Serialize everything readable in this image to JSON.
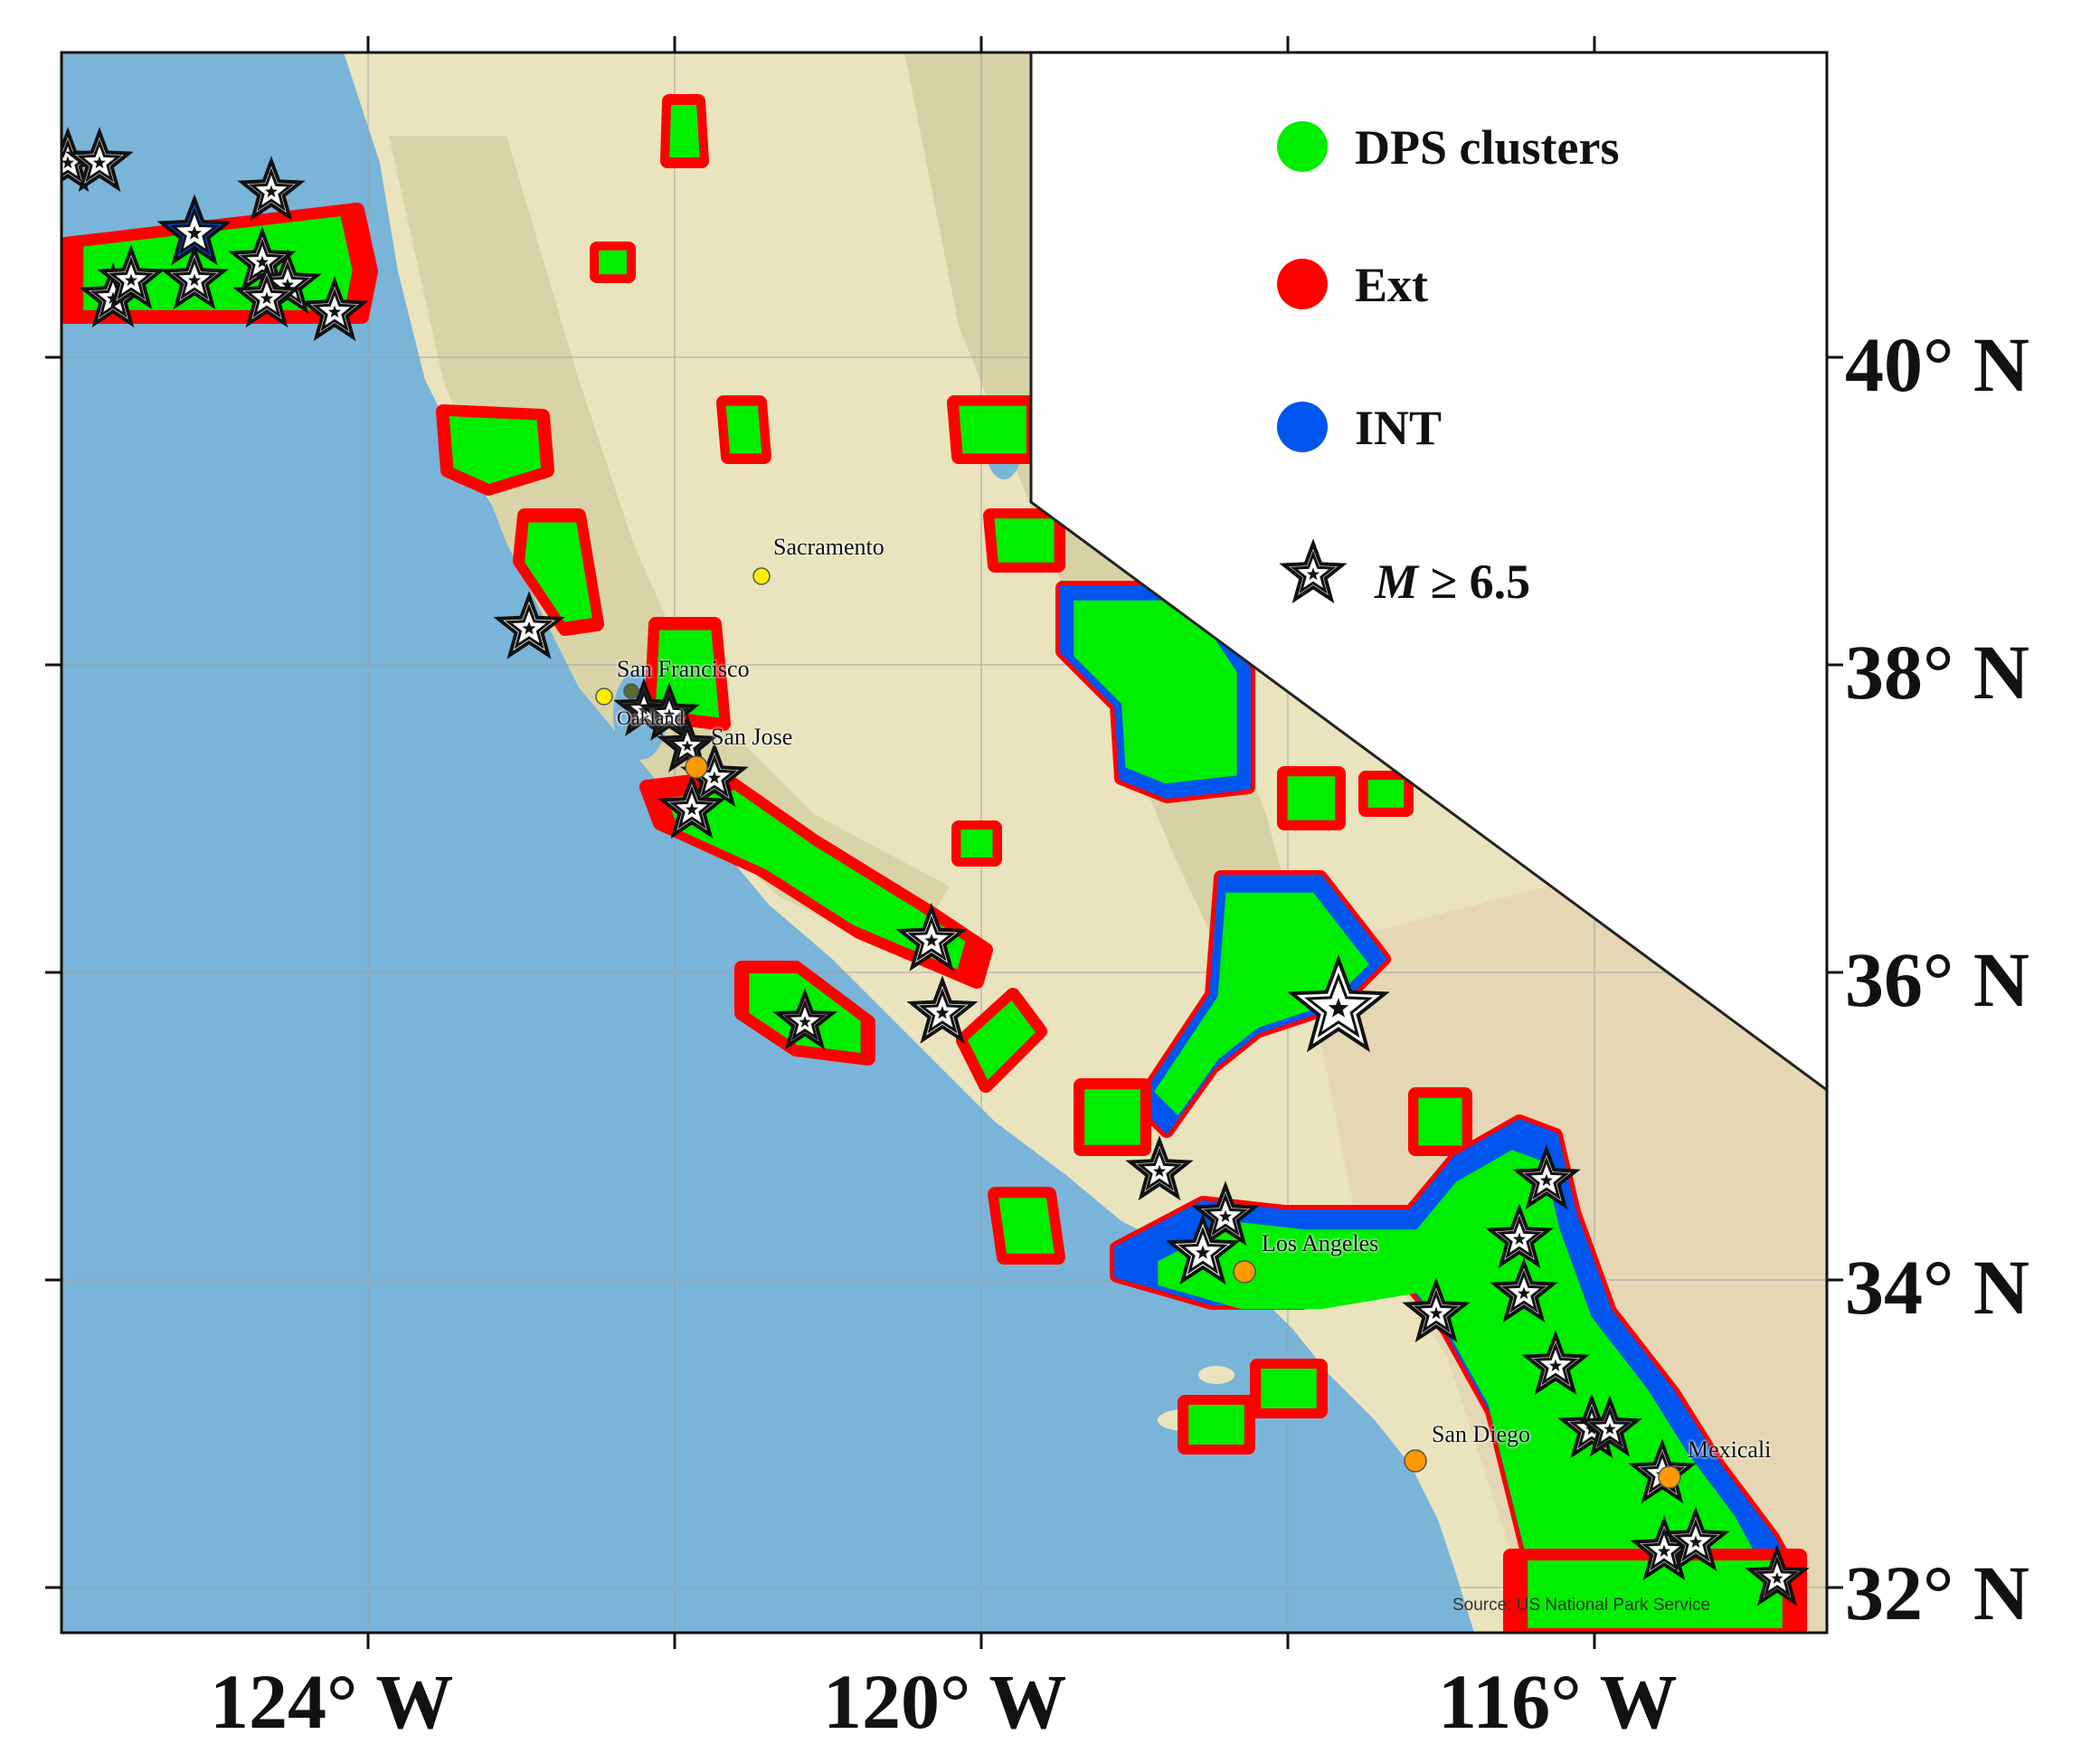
{
  "axes": {
    "x_ticks": [
      "124° W",
      "120° W",
      "116° W"
    ],
    "y_ticks": [
      "40° N",
      "38° N",
      "36° N",
      "34° N",
      "32° N"
    ]
  },
  "legend": {
    "items": [
      {
        "label": "DPS clusters",
        "color": "#00ee00"
      },
      {
        "label": "Ext",
        "color": "#ff0000"
      },
      {
        "label": "INT",
        "color": "#0055ee"
      }
    ],
    "star_label_prefix": "M",
    "star_label_suffix": " ≥ 6.5"
  },
  "cities": [
    {
      "name": "Sacramento",
      "color": "#ffee00"
    },
    {
      "name": "San Francisco",
      "color": "#ffee00"
    },
    {
      "name": "Oakland",
      "color": "#556b2f"
    },
    {
      "name": "San Jose",
      "color": "#ff9900"
    },
    {
      "name": "Los Angeles",
      "color": "#ff9900"
    },
    {
      "name": "San Diego",
      "color": "#ff9900"
    },
    {
      "name": "Mexicali",
      "color": "#ff9900"
    }
  ],
  "source": "Source: US National Park Service",
  "colors": {
    "ocean": "#7ab4d8",
    "land": "#e9e4bd",
    "dps": "#00ee00",
    "ext": "#ff0000",
    "int": "#0055ee"
  }
}
